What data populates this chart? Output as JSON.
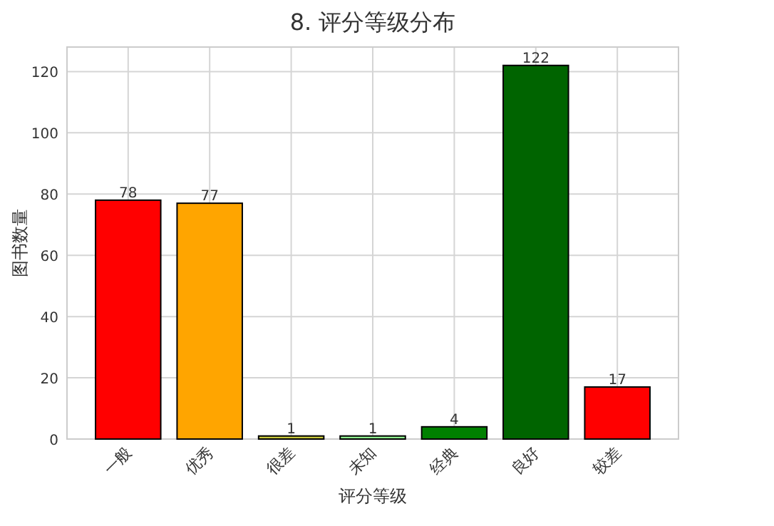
{
  "chart_data": {
    "type": "bar",
    "title": "8.  评分等级分布",
    "xlabel": "评分等级",
    "ylabel": "图书数量",
    "categories": [
      "一般",
      "优秀",
      "很差",
      "未知",
      "经典",
      "良好",
      "较差"
    ],
    "values": [
      78,
      77,
      1,
      1,
      4,
      122,
      17
    ],
    "colors": [
      "#ff0000",
      "#ffa500",
      "#c8c83c",
      "#90ee90",
      "#008000",
      "#006400",
      "#ff0000"
    ],
    "ylim": [
      0,
      128
    ],
    "yticks": [
      0,
      20,
      40,
      60,
      80,
      100,
      120
    ],
    "grid": true,
    "data_labels": true
  }
}
